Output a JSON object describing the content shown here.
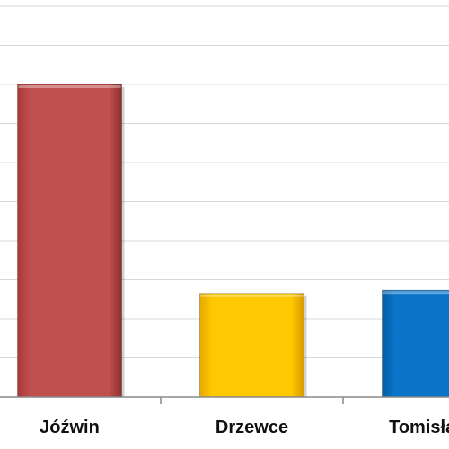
{
  "chart_data": {
    "type": "bar",
    "title": "",
    "xlabel": "",
    "ylabel": "",
    "categories": [
      "Jóźwin",
      "Drzewce",
      "Tomisława"
    ],
    "values": [
      8,
      2.65,
      2.73
    ],
    "ylim": [
      0,
      10
    ],
    "grid": true,
    "colors": {
      "Jóźwin": "#c0504d",
      "Drzewce": "#ffc000",
      "Tomisława": "#0070c0"
    },
    "gridline_color": "#d9d9d9",
    "axis_color": "#888888"
  }
}
